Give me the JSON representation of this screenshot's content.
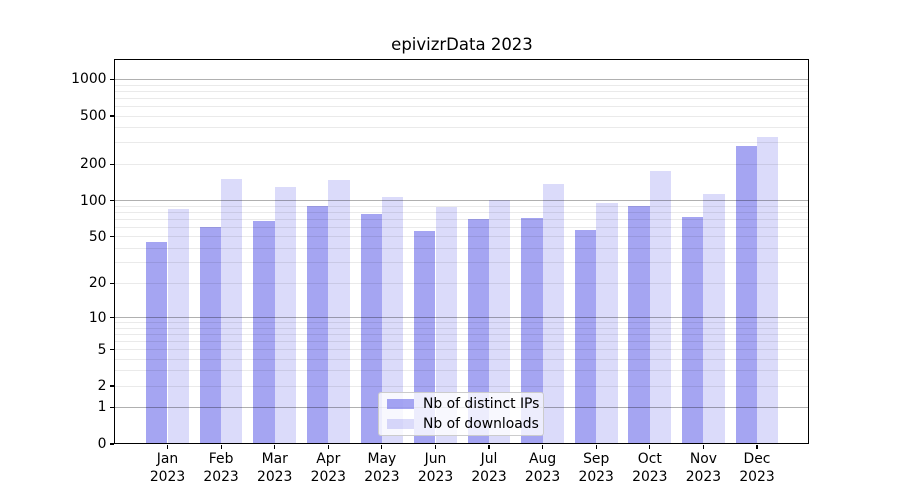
{
  "chart_data": {
    "type": "bar",
    "title": "epivizrData 2023",
    "categories": [
      "Jan 2023",
      "Feb 2023",
      "Mar 2023",
      "Apr 2023",
      "May 2023",
      "Jun 2023",
      "Jul 2023",
      "Aug 2023",
      "Sep 2023",
      "Oct 2023",
      "Nov 2023",
      "Dec 2023"
    ],
    "series": [
      {
        "name": "Nb of distinct IPs",
        "values": [
          45,
          60,
          67,
          90,
          77,
          56,
          70,
          71,
          57,
          90,
          73,
          285
        ]
      },
      {
        "name": "Nb of downloads",
        "values": [
          85,
          150,
          130,
          147,
          108,
          88,
          101,
          136,
          96,
          176,
          113,
          338
        ]
      }
    ],
    "yscale": "log1p",
    "yticks": [
      0,
      1,
      2,
      5,
      10,
      20,
      50,
      100,
      200,
      500,
      1000
    ],
    "ytick_labels": [
      "0",
      "1",
      "2",
      "5",
      "10",
      "20",
      "50",
      "100",
      "200",
      "500",
      "1000"
    ],
    "ylim": [
      0,
      1460
    ],
    "grid": "horizontal, major and minor",
    "legend_position": "lower center"
  },
  "colors": {
    "bar_base": "#4c4ce6",
    "ips_alpha": 0.5,
    "downloads_alpha": 0.2,
    "ips_fill_on_white": "#a5a5f2",
    "downloads_fill_on_white": "#dbdbfa",
    "grid_major": "#b0b0b0",
    "grid_minor": "#ebebeb",
    "spine": "#000000",
    "text": "#000000",
    "legend_border": "#cccccc",
    "legend_bg": "#ffffff"
  }
}
